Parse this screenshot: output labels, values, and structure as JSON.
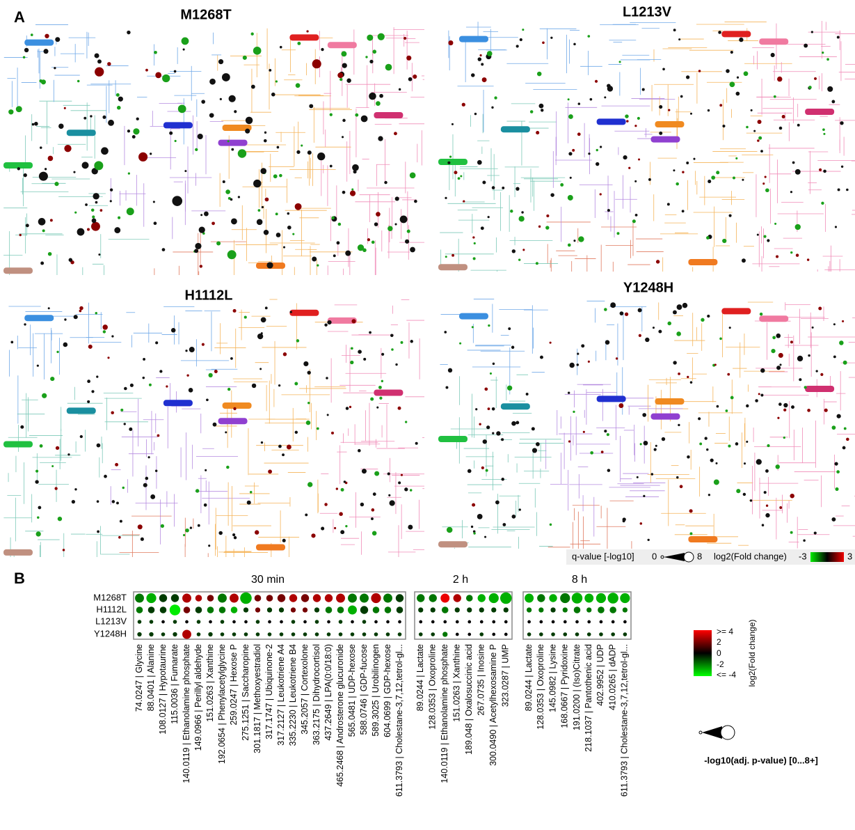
{
  "panel_a": {
    "label": "A",
    "maps": [
      {
        "title": "M1268T"
      },
      {
        "title": "L1213V"
      },
      {
        "title": "H1112L"
      },
      {
        "title": "Y1248H"
      }
    ],
    "legend": {
      "q_label": "q-value [-log10]",
      "q_min": "0",
      "q_max": "8",
      "fc_label": "log2(Fold change)",
      "fc_min": "-3",
      "fc_max": "3"
    }
  },
  "panel_b": {
    "label": "B",
    "rows": [
      "M1268T",
      "H1112L",
      "L1213V",
      "Y1248H"
    ],
    "groups": [
      {
        "title": "30 min",
        "columns": [
          "74.0247 | Glycine",
          "88.0401 | Alanine",
          "108.0127 | Hypotaurine",
          "115.0036 | Fumarate",
          "140.0119 | Ethanolamine phosphate",
          "149.0966 | Perillyl aldehyde",
          "151.0263 | Xanthine",
          "192.0654 | Phenylacetylglycine",
          "259.0247 | Hexose P",
          "275.1251 | Saccharopine",
          "301.1817 | Methoxyestradiol",
          "317.1747 | Ubiquinone-2",
          "317.2127 | Leukotriene A4",
          "335.2230 | Leukotriene B4",
          "345.2057 | Cortexolone",
          "363.2175 | Dihydrocortisol",
          "437.2649 | LPA(0:0/18:0)",
          "465.2468 | Androsterone glucuronide",
          "565.0481 | UDP-hexose",
          "588.0746 | GDP-fucose",
          "589.3025 | Urobilinogen",
          "604.0699 | GDP-hexose",
          "611.3793 | Cholestane-3,7,12,tetrol-gl..."
        ],
        "fold_change": [
          [
            -2,
            -3,
            -1,
            -1,
            3,
            3,
            2,
            -2,
            3,
            -3,
            2,
            2,
            2,
            3,
            2,
            3,
            3,
            3,
            -2,
            -2,
            3,
            -2,
            -1
          ],
          [
            -2,
            -1,
            -1,
            -4,
            2,
            -1,
            -2,
            -2,
            -3,
            -1,
            2,
            -1,
            -1,
            2,
            2,
            -1,
            -2,
            -2,
            -3,
            -1,
            -2,
            -2,
            -1
          ],
          [
            -1,
            -1,
            0,
            -1,
            0,
            -1,
            0,
            -1,
            0,
            0,
            -1,
            0,
            0,
            -1,
            0,
            -1,
            0,
            -1,
            0,
            -1,
            0,
            0,
            0
          ],
          [
            -1,
            -1,
            -1,
            -1,
            3,
            -1,
            -1,
            -1,
            -1,
            -1,
            -1,
            -1,
            -1,
            -1,
            -1,
            -1,
            -1,
            -1,
            -1,
            -1,
            -1,
            -1,
            -1
          ]
        ],
        "neg_log10_p": [
          [
            4,
            5,
            3,
            3,
            4,
            2,
            2,
            4,
            4,
            7,
            2,
            2,
            3,
            3,
            3,
            3,
            3,
            4,
            4,
            4,
            5,
            4,
            3
          ],
          [
            2,
            2,
            2,
            6,
            2,
            2,
            2,
            2,
            2,
            1,
            1,
            1,
            1,
            1,
            1,
            1,
            2,
            2,
            4,
            3,
            2,
            2,
            2
          ],
          [
            0.5,
            0.5,
            0.3,
            0.5,
            0.3,
            0.5,
            0.3,
            0.5,
            0.3,
            0.3,
            0.5,
            0.3,
            0.3,
            0.5,
            0.3,
            0.5,
            0.3,
            0.5,
            0.3,
            0.5,
            0.3,
            0.3,
            0.3
          ],
          [
            0.7,
            0.7,
            0.5,
            0.7,
            4,
            0.5,
            0.7,
            0.5,
            0.5,
            0.5,
            0.5,
            0.5,
            0.5,
            0.5,
            0.5,
            0.5,
            0.5,
            0.5,
            0.5,
            0.5,
            0.5,
            0.5,
            0.5
          ]
        ]
      },
      {
        "title": "2 h",
        "columns": [
          "89.0244 | Lactate",
          "128.0353 | Oxoproline",
          "140.0119 | Ethanolamine phosphate",
          "151.0263 | Xanthine",
          "189.048 | Oxalosuccinic acid",
          "267.0735 | Inosine",
          "300.0490 | Acetylhexosamine P",
          "323.0287 | UMP"
        ],
        "fold_change": [
          [
            -2,
            -2,
            4,
            3,
            -2,
            -3,
            -3,
            -3
          ],
          [
            -1,
            -1,
            -2,
            -1,
            -1,
            -1,
            -1,
            -1
          ],
          [
            0,
            0,
            0,
            0,
            0,
            0,
            0,
            0
          ],
          [
            -1,
            -1,
            -2,
            0,
            0,
            -1,
            0,
            0
          ]
        ],
        "neg_log10_p": [
          [
            3,
            3,
            4,
            3,
            2,
            3,
            5,
            7
          ],
          [
            1,
            1,
            2,
            1,
            1,
            1,
            1,
            1
          ],
          [
            0.3,
            0.3,
            0.3,
            0.3,
            0.3,
            0.3,
            0.3,
            0.3
          ],
          [
            0.5,
            0.5,
            1,
            0.3,
            0.3,
            0.5,
            0.3,
            0.3
          ]
        ]
      },
      {
        "title": "8 h",
        "columns": [
          "89.0244 | Lactate",
          "128.0353 | Oxoproline",
          "145.0982 | Lysine",
          "168.0667 | Pyridoxine",
          "191.0200 | (Iso)Citrate",
          "218.1037 | Pantothenic acid",
          "402.9952 | UDP",
          "410.0265 | dADP",
          "611.3793 | Cholestane-3,7,12,tetrol-gl..."
        ],
        "fold_change": [
          [
            -3,
            -2,
            -3,
            -2,
            -3,
            -3,
            -3,
            -3,
            -3
          ],
          [
            -2,
            -2,
            -1,
            -2,
            -2,
            -2,
            -2,
            -2,
            -2
          ],
          [
            0,
            0,
            0,
            0,
            0,
            0,
            0,
            0,
            0
          ],
          [
            -1,
            -1,
            -1,
            -1,
            -1,
            -1,
            -1,
            -1,
            -1
          ]
        ],
        "neg_log10_p": [
          [
            4,
            3,
            3,
            5,
            6,
            4,
            5,
            6,
            5
          ],
          [
            1,
            1,
            1,
            1,
            2,
            1,
            2,
            2,
            1
          ],
          [
            0.3,
            0.3,
            0.3,
            0.3,
            0.3,
            0.3,
            0.3,
            0.3,
            0.3
          ],
          [
            0.5,
            0.5,
            0.5,
            0.5,
            0.5,
            0.5,
            0.5,
            0.5,
            0.5
          ]
        ]
      }
    ],
    "color_legend": {
      "title": "log2(Fold change)",
      "ticks": [
        ">= 4",
        "2",
        "0",
        "-2",
        "<= -4"
      ]
    },
    "size_legend": {
      "title": "-log10(adj. p-value) [0...8+]"
    }
  }
}
